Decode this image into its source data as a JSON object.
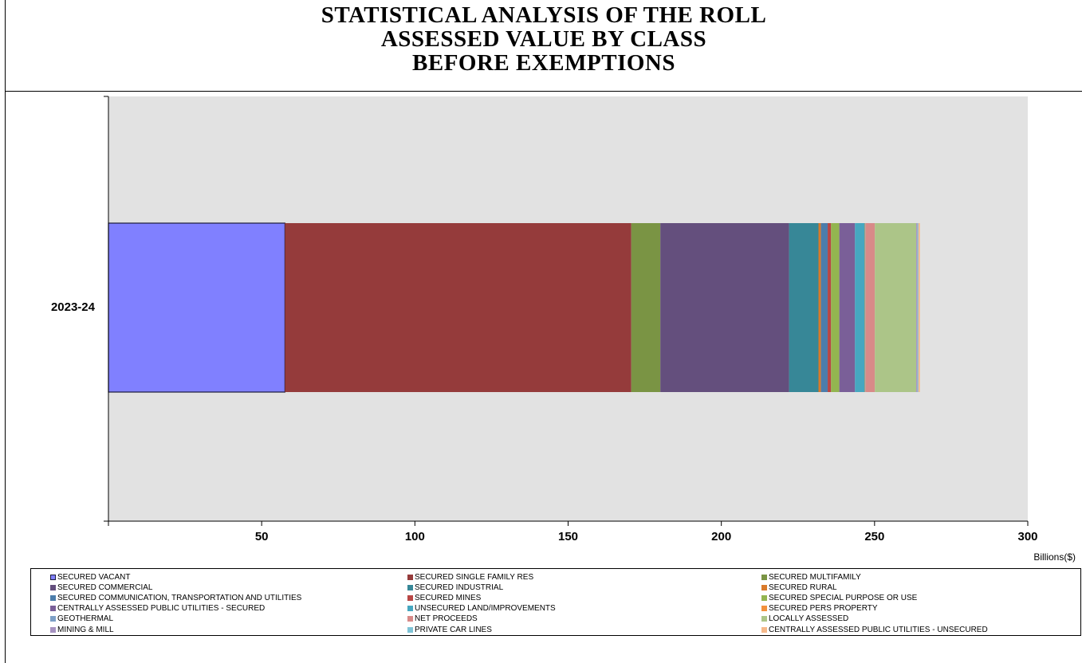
{
  "chart_data": {
    "type": "bar",
    "orientation": "horizontal",
    "stacked": true,
    "title": [
      "STATISTICAL ANALYSIS OF THE ROLL",
      "ASSESSED VALUE BY CLASS",
      "BEFORE EXEMPTIONS"
    ],
    "xlabel": "Billions($)",
    "ylabel": "",
    "categories": [
      "2023-24"
    ],
    "xlim": [
      0,
      300
    ],
    "xticks": [
      50,
      100,
      150,
      200,
      250,
      300
    ],
    "grid": false,
    "legend_position": "bottom",
    "plot_background": "#e2e2e2",
    "series": [
      {
        "name": "SECURED VACANT",
        "color": "#8080ff",
        "values": [
          57.6
        ]
      },
      {
        "name": "SECURED SINGLE FAMILY RES",
        "color": "#953b3b",
        "values": [
          113.0
        ]
      },
      {
        "name": "SECURED MULTIFAMILY",
        "color": "#7a9444",
        "values": [
          9.5
        ]
      },
      {
        "name": "SECURED COMMERCIAL",
        "color": "#644f7d",
        "values": [
          42.0
        ]
      },
      {
        "name": "SECURED INDUSTRIAL",
        "color": "#378797",
        "values": [
          9.6
        ]
      },
      {
        "name": "SECURED RURAL",
        "color": "#d97a2a",
        "values": [
          0.8
        ]
      },
      {
        "name": "SECURED COMMUNICATION, TRANSPORTATION AND UTILITIES",
        "color": "#4c7dab",
        "values": [
          2.2
        ]
      },
      {
        "name": "SECURED MINES",
        "color": "#b84745",
        "values": [
          1.1
        ]
      },
      {
        "name": "SECURED SPECIAL PURPOSE OR USE",
        "color": "#93b550",
        "values": [
          2.7
        ]
      },
      {
        "name": "CENTRALLY ASSESSED PUBLIC UTILITIES - SECURED",
        "color": "#7a5f98",
        "values": [
          5.1
        ]
      },
      {
        "name": "UNSECURED LAND/IMPROVEMENTS",
        "color": "#46a7c0",
        "values": [
          3.2
        ]
      },
      {
        "name": "SECURED PERS PROPERTY",
        "color": "#f2913c",
        "values": [
          0.2
        ]
      },
      {
        "name": "GEOTHERMAL",
        "color": "#7c9fc6",
        "values": [
          0.1
        ]
      },
      {
        "name": "NET PROCEEDS",
        "color": "#d88a88",
        "values": [
          3.0
        ]
      },
      {
        "name": "LOCALLY ASSESSED",
        "color": "#acc588",
        "values": [
          13.5
        ]
      },
      {
        "name": "MINING & MILL",
        "color": "#a692c0",
        "values": [
          0.4
        ]
      },
      {
        "name": "PRIVATE CAR LINES",
        "color": "#7fc3d6",
        "values": [
          0.3
        ]
      },
      {
        "name": "CENTRALLY ASSESSED PUBLIC UTILITIES - UNSECURED",
        "color": "#f6b98a",
        "values": [
          0.5
        ]
      }
    ]
  }
}
